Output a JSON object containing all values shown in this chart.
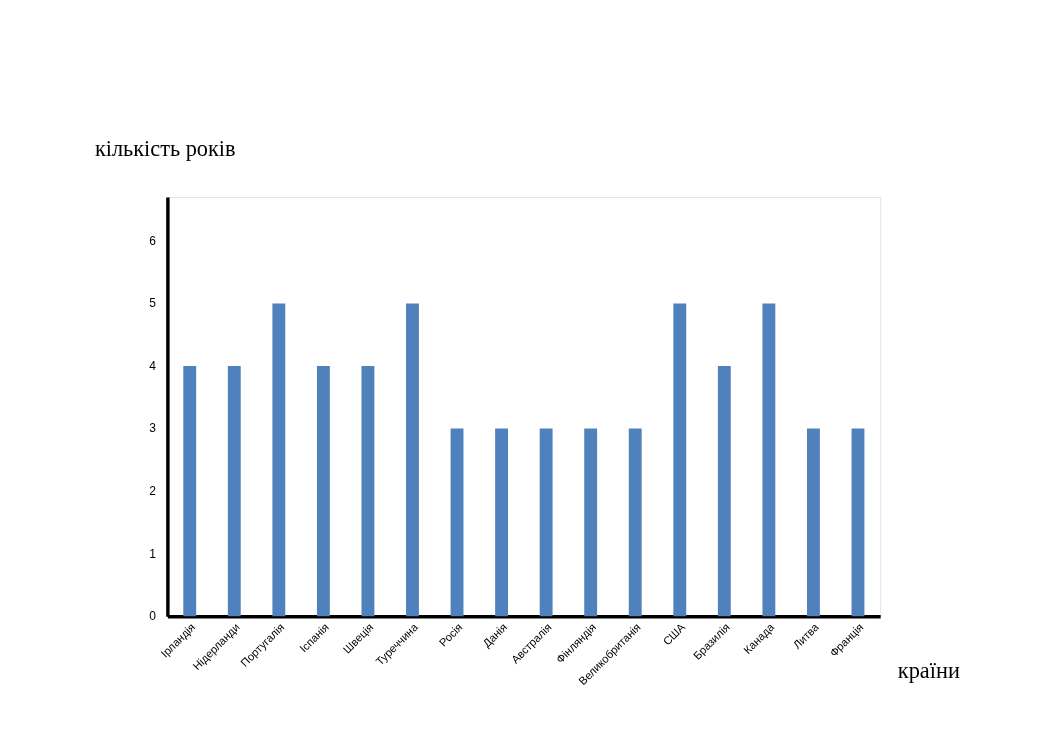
{
  "chart_data": {
    "type": "bar",
    "xlabel": "країни",
    "ylabel": "кількість років",
    "categories": [
      "Ірландія",
      "Нідерланди",
      "Португалія",
      "Іспанія",
      "Швеція",
      "Туреччина",
      "Росія",
      "Данія",
      "Австралія",
      "Фінляндія",
      "Великобританія",
      "США",
      "Бразилія",
      "Канада",
      "Литва",
      "Франція"
    ],
    "values": [
      4,
      4,
      5,
      4,
      4,
      5,
      3,
      3,
      3,
      3,
      3,
      5,
      4,
      5,
      3,
      3
    ],
    "color": "#4f81bd",
    "ylim": [
      0,
      6.7
    ],
    "yticks": [
      0,
      1,
      2,
      3,
      4,
      5,
      6
    ],
    "grid": false
  }
}
